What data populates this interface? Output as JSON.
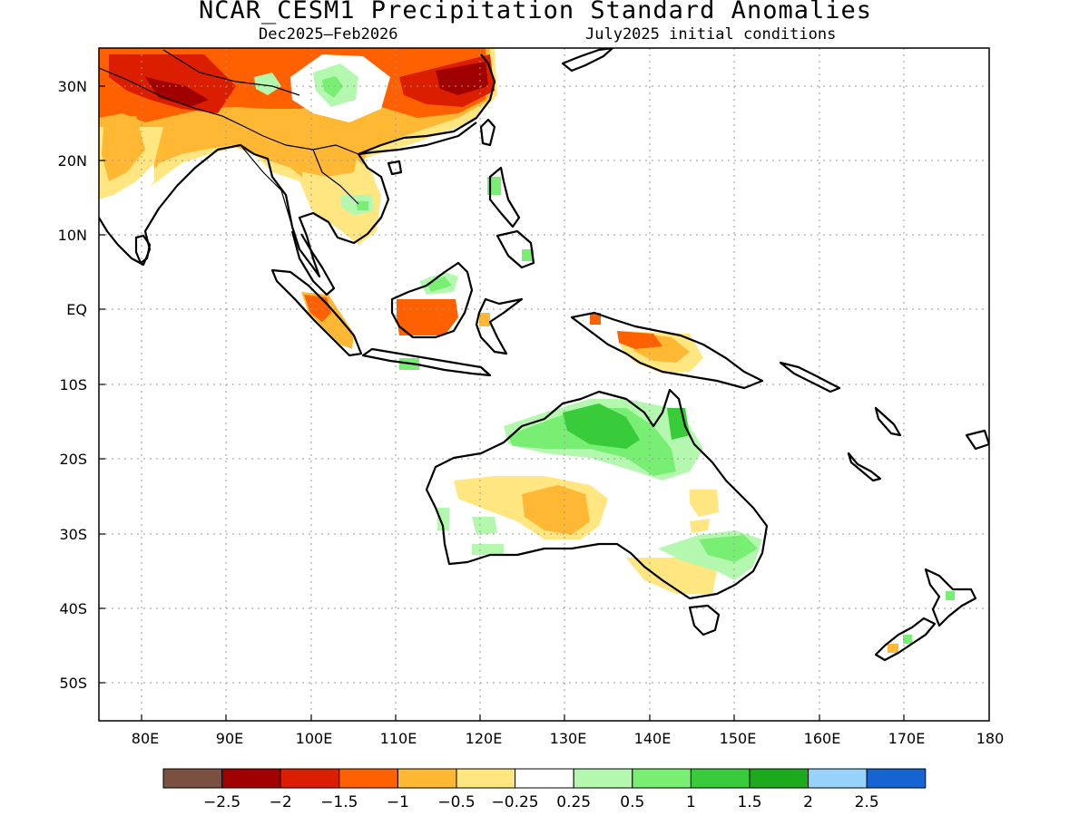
{
  "header": {
    "title": "NCAR_CESM1 Precipitation Standard Anomalies",
    "period": "Dec2025–Feb2026",
    "initial_conditions": "July2025 initial conditions"
  },
  "map": {
    "lon_range": [
      75,
      180
    ],
    "lat_range": [
      -55,
      35
    ],
    "lon_ticks": [
      {
        "value": 80,
        "label": "80E"
      },
      {
        "value": 90,
        "label": "90E"
      },
      {
        "value": 100,
        "label": "100E"
      },
      {
        "value": 110,
        "label": "110E"
      },
      {
        "value": 120,
        "label": "120E"
      },
      {
        "value": 130,
        "label": "130E"
      },
      {
        "value": 140,
        "label": "140E"
      },
      {
        "value": 150,
        "label": "150E"
      },
      {
        "value": 160,
        "label": "160E"
      },
      {
        "value": 170,
        "label": "170E"
      },
      {
        "value": 180,
        "label": "180"
      }
    ],
    "lat_ticks": [
      {
        "value": 30,
        "label": "30N"
      },
      {
        "value": 20,
        "label": "20N"
      },
      {
        "value": 10,
        "label": "10N"
      },
      {
        "value": 0,
        "label": "EQ"
      },
      {
        "value": -10,
        "label": "10S"
      },
      {
        "value": -20,
        "label": "20S"
      },
      {
        "value": -30,
        "label": "30S"
      },
      {
        "value": -40,
        "label": "40S"
      },
      {
        "value": -50,
        "label": "50S"
      }
    ],
    "grid": true,
    "gridline_style": "dotted"
  },
  "colorbar": {
    "colors": [
      "#7a5040",
      "#a00000",
      "#dc1e00",
      "#ff6000",
      "#ffb834",
      "#ffe680",
      "#ffffff",
      "#b4f8b0",
      "#78ee72",
      "#38cc3a",
      "#1aaa1c",
      "#96d2fa",
      "#1464d2"
    ],
    "labels": [
      "−2.5",
      "−2",
      "−1.5",
      "−1",
      "−0.5",
      "−0.25",
      "0.25",
      "0.5",
      "1",
      "1.5",
      "2",
      "2.5"
    ]
  }
}
